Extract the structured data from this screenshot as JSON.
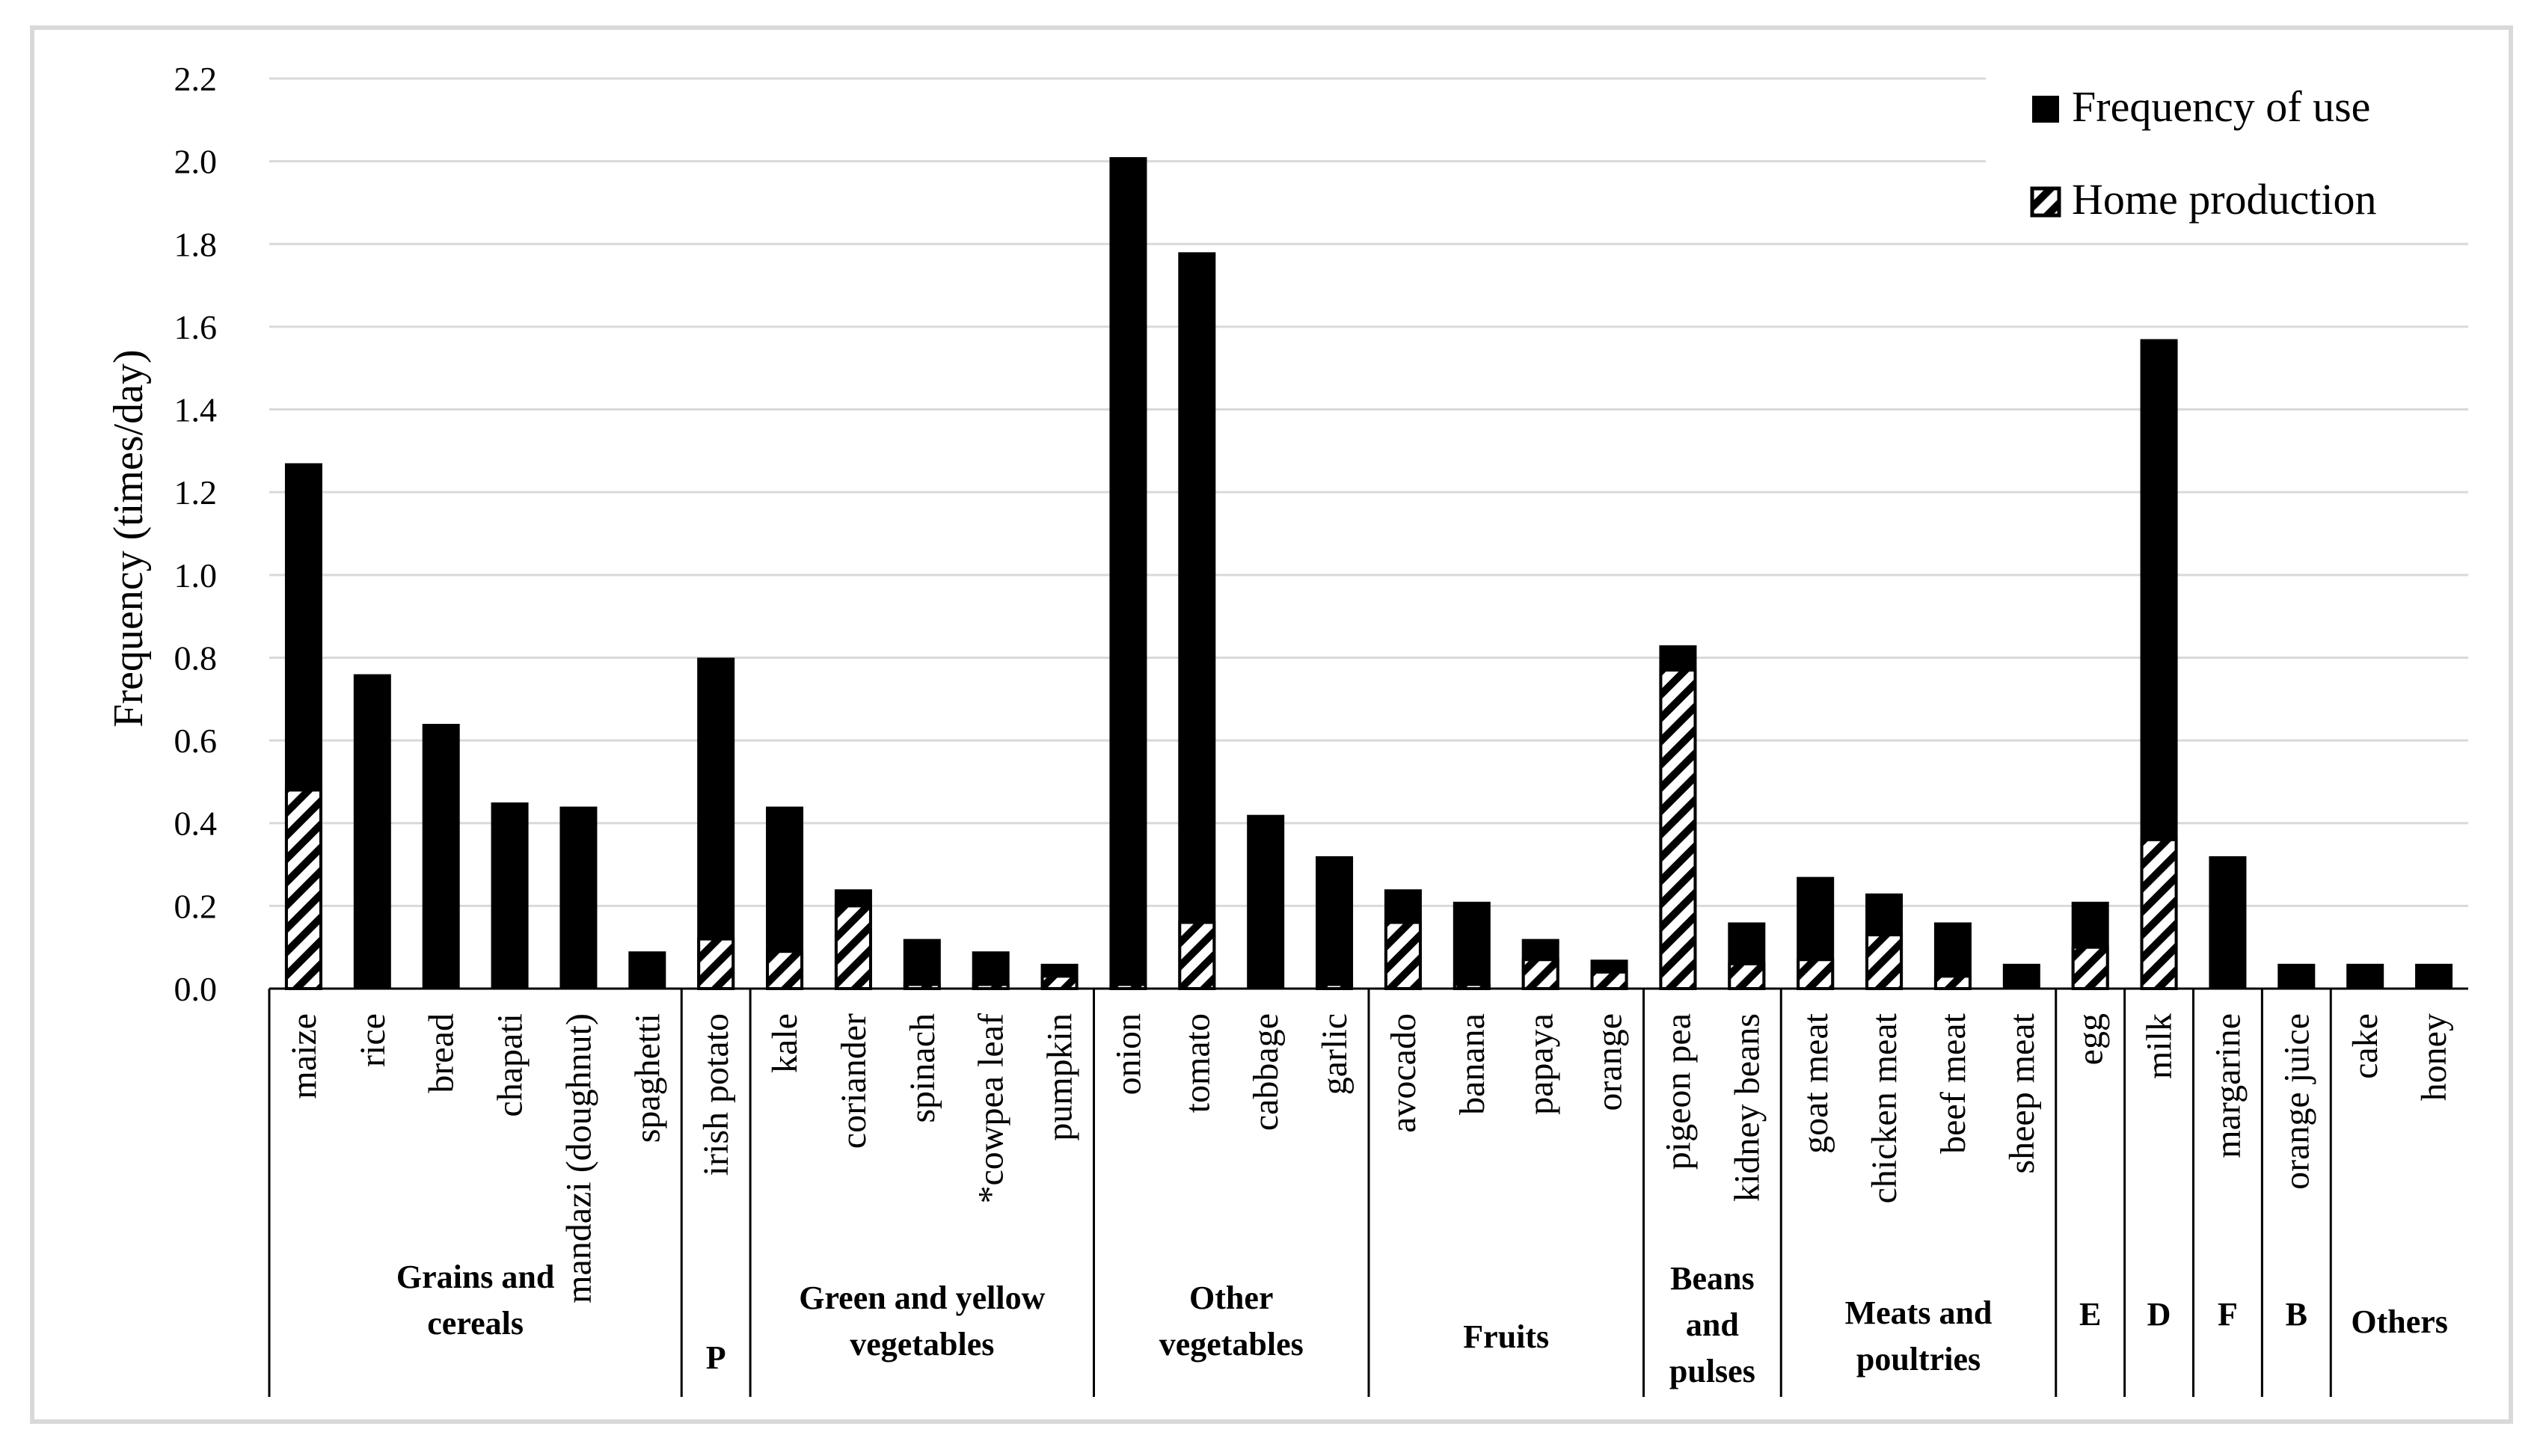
{
  "chart_data": {
    "type": "bar",
    "mode": "overlaid",
    "title": "",
    "xlabel": "",
    "ylabel": "Frequency (times/day)",
    "ylim": [
      0,
      2.2
    ],
    "yticks": [
      "0.0",
      "0.2",
      "0.4",
      "0.6",
      "0.8",
      "1.0",
      "1.2",
      "1.4",
      "1.6",
      "1.8",
      "2.0",
      "2.2"
    ],
    "grid": true,
    "legend_position": "top-right",
    "categories": [
      "maize",
      "rice",
      "bread",
      "chapati",
      "mandazi (doughnut)",
      "spaghetti",
      "irish potato",
      "kale",
      "coriander",
      "spinach",
      "*cowpea leaf",
      "pumpkin",
      "onion",
      "tomato",
      "cabbage",
      "garlic",
      "avocado",
      "banana",
      "papaya",
      "orange",
      "pigeon pea",
      "kidney beans",
      "goat meat",
      "chicken meat",
      "beef meat",
      "sheep meat",
      "egg",
      "milk",
      "margarine",
      "orange juice",
      "cake",
      "honey"
    ],
    "series": [
      {
        "name": "Frequency of use",
        "fill": "solid",
        "color": "#000000",
        "values": [
          1.27,
          0.76,
          0.64,
          0.45,
          0.44,
          0.09,
          0.8,
          0.44,
          0.24,
          0.12,
          0.09,
          0.06,
          2.01,
          1.78,
          0.42,
          0.32,
          0.24,
          0.21,
          0.12,
          0.07,
          0.83,
          0.16,
          0.27,
          0.23,
          0.16,
          0.06,
          0.21,
          1.57,
          0.32,
          0.06,
          0.06,
          0.06
        ]
      },
      {
        "name": "Home production",
        "fill": "hatched",
        "color": "#000000",
        "values": [
          0.48,
          0,
          0,
          0,
          0,
          0,
          0.12,
          0.09,
          0.2,
          0.01,
          0.01,
          0.03,
          0.01,
          0.16,
          0,
          0.01,
          0.16,
          0.01,
          0.07,
          0.04,
          0.77,
          0.06,
          0.07,
          0.13,
          0.03,
          0,
          0.1,
          0.36,
          0,
          0,
          0,
          0
        ]
      }
    ],
    "groups": [
      {
        "label": [
          "Grains and",
          "cereals"
        ],
        "start": 0,
        "end": 5
      },
      {
        "label": [
          "P"
        ],
        "start": 6,
        "end": 6
      },
      {
        "label": [
          "Green and yellow",
          "vegetables"
        ],
        "start": 7,
        "end": 11
      },
      {
        "label": [
          "Other",
          "vegetables"
        ],
        "start": 12,
        "end": 15
      },
      {
        "label": [
          "Fruits"
        ],
        "start": 16,
        "end": 19
      },
      {
        "label": [
          "Beans",
          "and",
          "pulses"
        ],
        "start": 20,
        "end": 21
      },
      {
        "label": [
          "Meats and",
          "poultries"
        ],
        "start": 22,
        "end": 25
      },
      {
        "label": [
          "E"
        ],
        "start": 26,
        "end": 26
      },
      {
        "label": [
          "D"
        ],
        "start": 27,
        "end": 27
      },
      {
        "label": [
          "F"
        ],
        "start": 28,
        "end": 28
      },
      {
        "label": [
          "B"
        ],
        "start": 29,
        "end": 29
      },
      {
        "label": [
          "Others"
        ],
        "start": 30,
        "end": 31
      }
    ]
  }
}
